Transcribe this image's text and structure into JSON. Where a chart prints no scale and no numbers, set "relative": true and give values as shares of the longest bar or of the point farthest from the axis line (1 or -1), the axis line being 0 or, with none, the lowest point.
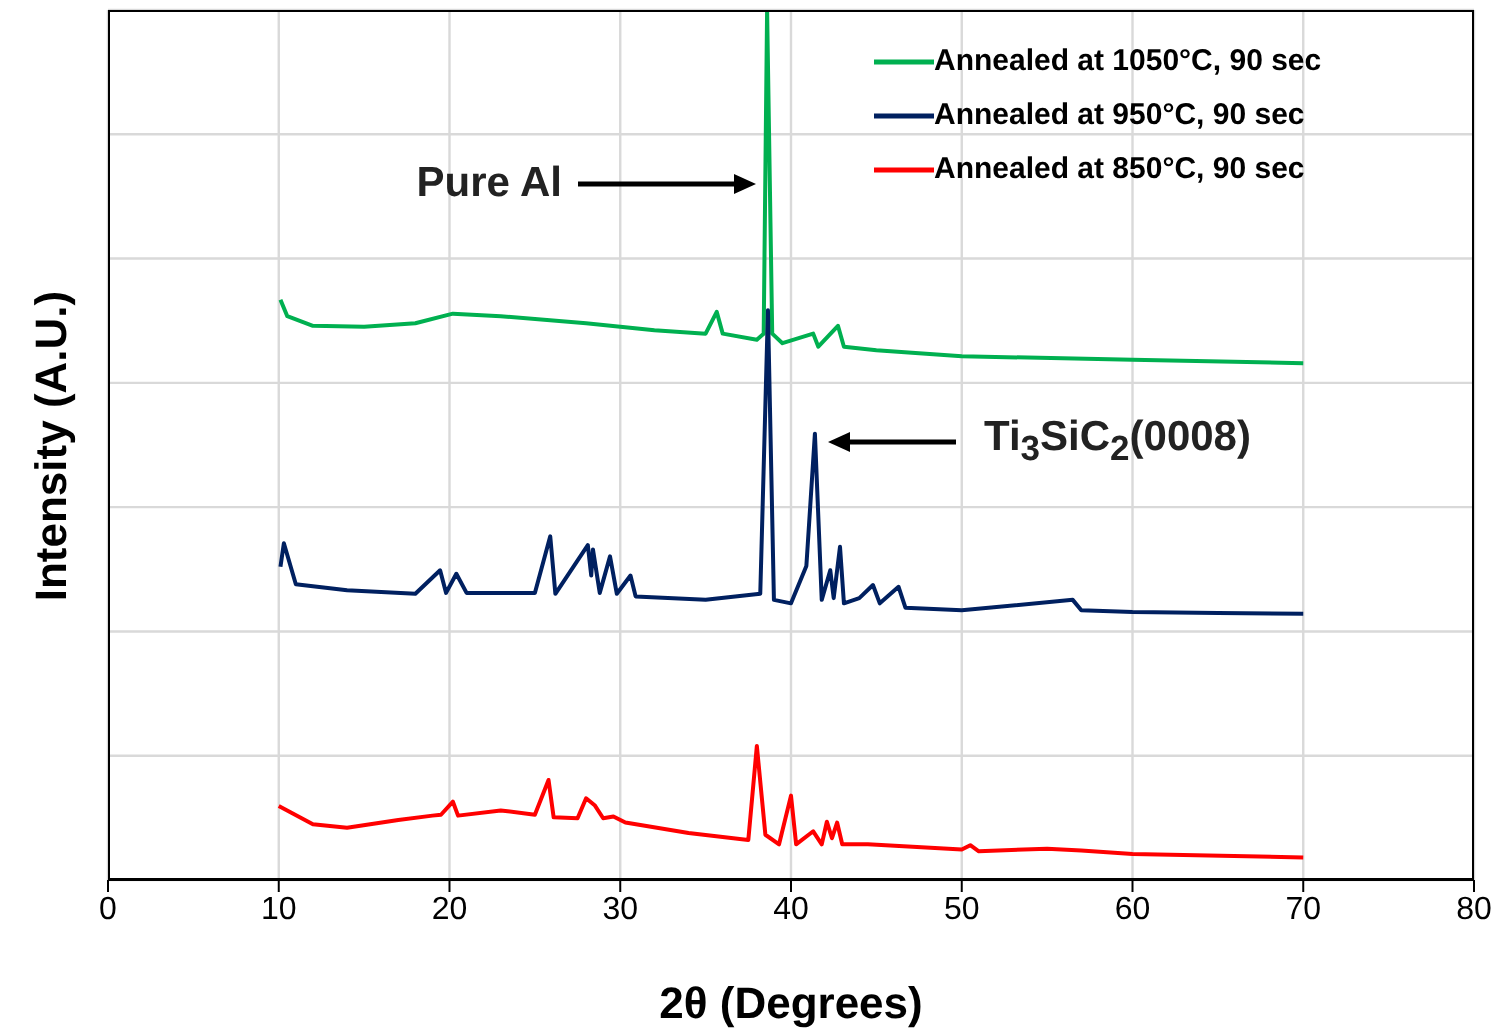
{
  "chart_data": {
    "type": "line",
    "relative": true,
    "xlabel": "2θ (Degrees)",
    "ylabel": "Intensity (A.U.)",
    "xlim": [
      0,
      80
    ],
    "xticks": [
      0,
      10,
      20,
      30,
      40,
      50,
      60,
      70,
      80
    ],
    "grid": true,
    "legend": "top right",
    "marker": "none",
    "line_style": "solid",
    "annotations": [
      "Pure Al",
      "Ti$_{3}$SiC$_{2}$(0008)"
    ],
    "series": [
      {
        "name": "Annealed at 1050°C, 90 sec",
        "color": "#00b050",
        "x": [
          10.1,
          10.5,
          12,
          15,
          18,
          20.2,
          23,
          28,
          32,
          35,
          35.65,
          36,
          38,
          38.4,
          38.6,
          38.9,
          39.5,
          41.3,
          41.6,
          42.75,
          43.1,
          45,
          50,
          60,
          70
        ],
        "values": [
          0.667,
          0.648,
          0.637,
          0.636,
          0.64,
          0.651,
          0.648,
          0.64,
          0.632,
          0.628,
          0.653,
          0.628,
          0.621,
          0.628,
          1,
          0.628,
          0.617,
          0.628,
          0.613,
          0.637,
          0.613,
          0.609,
          0.602,
          0.598,
          0.594
        ]
      },
      {
        "name": "Annealed at 950°C, 90 sec",
        "color": "#002060",
        "x": [
          10.1,
          10.3,
          11,
          14,
          18,
          19.45,
          19.8,
          20.4,
          21,
          25,
          25.9,
          26.2,
          28.1,
          28.3,
          28.4,
          28.8,
          29.4,
          29.8,
          30.6,
          30.9,
          35,
          38.2,
          38.65,
          39,
          40,
          40.9,
          41.4,
          41.8,
          42.3,
          42.5,
          42.87,
          43.1,
          44,
          44.8,
          45.2,
          46.3,
          46.7,
          50,
          56.5,
          57,
          60,
          65,
          70
        ],
        "values": [
          0.36,
          0.387,
          0.34,
          0.333,
          0.329,
          0.356,
          0.33,
          0.352,
          0.33,
          0.33,
          0.395,
          0.329,
          0.385,
          0.35,
          0.38,
          0.33,
          0.372,
          0.329,
          0.35,
          0.326,
          0.322,
          0.329,
          0.655,
          0.322,
          0.318,
          0.361,
          0.513,
          0.322,
          0.356,
          0.324,
          0.383,
          0.318,
          0.324,
          0.339,
          0.318,
          0.337,
          0.313,
          0.31,
          0.322,
          0.31,
          0.308,
          0.307,
          0.306
        ]
      },
      {
        "name": "Annealed at 850°C, 90 sec",
        "color": "#ff0000",
        "x": [
          10,
          12,
          14,
          17,
          19,
          19.5,
          20.2,
          20.5,
          23,
          25,
          25.8,
          26.1,
          27.5,
          28,
          28.5,
          29,
          29.6,
          30.3,
          34,
          37.5,
          38,
          38.5,
          39.3,
          40,
          40.3,
          41.3,
          41.8,
          42.1,
          42.4,
          42.7,
          43,
          44.5,
          50,
          50.5,
          51,
          55,
          57,
          60,
          70
        ],
        "values": [
          0.085,
          0.064,
          0.06,
          0.069,
          0.074,
          0.075,
          0.09,
          0.074,
          0.08,
          0.075,
          0.115,
          0.072,
          0.071,
          0.094,
          0.086,
          0.071,
          0.073,
          0.066,
          0.054,
          0.046,
          0.154,
          0.052,
          0.041,
          0.097,
          0.041,
          0.056,
          0.041,
          0.067,
          0.048,
          0.066,
          0.041,
          0.041,
          0.035,
          0.04,
          0.033,
          0.036,
          0.034,
          0.03,
          0.026
        ]
      }
    ]
  }
}
